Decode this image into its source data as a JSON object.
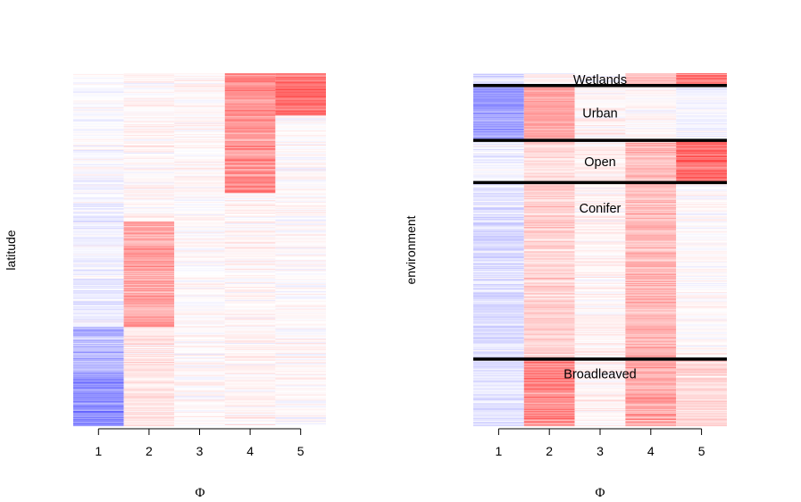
{
  "chart_data": [
    {
      "type": "heatmap",
      "ylabel": "latitude",
      "xlabel": "Φ",
      "categories": [
        "1",
        "2",
        "3",
        "4",
        "5"
      ],
      "rows": 400,
      "colors": {
        "negative": "#0000ff",
        "neutral": "#ffffff",
        "positive": "#ff0000"
      },
      "column_profiles": [
        {
          "column": "1",
          "segments": [
            {
              "from": 0.0,
              "to": 0.35,
              "mean": -0.02
            },
            {
              "from": 0.35,
              "to": 0.72,
              "mean": -0.08
            },
            {
              "from": 0.72,
              "to": 0.85,
              "mean": -0.35
            },
            {
              "from": 0.85,
              "to": 1.0,
              "mean": -0.55
            }
          ]
        },
        {
          "column": "2",
          "segments": [
            {
              "from": 0.0,
              "to": 0.42,
              "mean": 0.04
            },
            {
              "from": 0.42,
              "to": 0.72,
              "mean": 0.45
            },
            {
              "from": 0.72,
              "to": 1.0,
              "mean": 0.12
            }
          ]
        },
        {
          "column": "3",
          "segments": [
            {
              "from": 0.0,
              "to": 1.0,
              "mean": 0.02
            }
          ]
        },
        {
          "column": "4",
          "segments": [
            {
              "from": 0.0,
              "to": 0.34,
              "mean": 0.55
            },
            {
              "from": 0.34,
              "to": 1.0,
              "mean": 0.05
            }
          ]
        },
        {
          "column": "5",
          "segments": [
            {
              "from": 0.0,
              "to": 0.12,
              "mean": 0.7
            },
            {
              "from": 0.12,
              "to": 1.0,
              "mean": 0.02
            }
          ]
        }
      ]
    },
    {
      "type": "heatmap",
      "ylabel": "environment",
      "xlabel": "Φ",
      "categories": [
        "1",
        "2",
        "3",
        "4",
        "5"
      ],
      "rows": 400,
      "colors": {
        "negative": "#0000ff",
        "neutral": "#ffffff",
        "positive": "#ff0000"
      },
      "groups": [
        {
          "label": "Wetlands",
          "from": 0.0,
          "to": 0.035,
          "means": [
            -0.15,
            0.05,
            0.0,
            0.35,
            0.65
          ]
        },
        {
          "label": "Urban",
          "from": 0.035,
          "to": 0.19,
          "means": [
            -0.5,
            0.45,
            0.05,
            0.02,
            -0.05
          ]
        },
        {
          "label": "Open",
          "from": 0.19,
          "to": 0.31,
          "means": [
            -0.05,
            0.15,
            0.08,
            0.35,
            0.75
          ]
        },
        {
          "label": "Conifer",
          "from": 0.31,
          "to": 0.81,
          "means": [
            -0.15,
            0.22,
            0.05,
            0.35,
            0.02
          ]
        },
        {
          "label": "Broadleaved",
          "from": 0.81,
          "to": 1.0,
          "means": [
            -0.12,
            0.6,
            0.05,
            0.45,
            0.2
          ]
        }
      ]
    }
  ]
}
